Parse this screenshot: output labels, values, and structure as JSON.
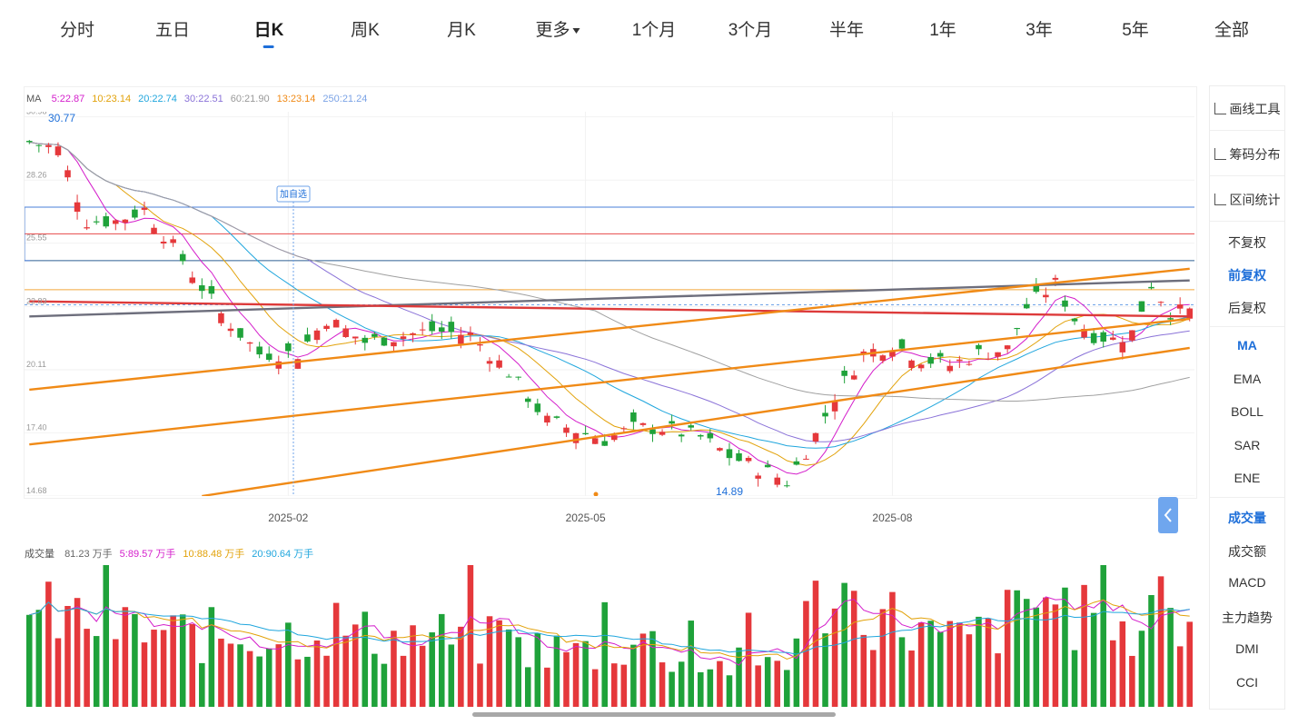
{
  "tabs": [
    {
      "label": "分时"
    },
    {
      "label": "五日"
    },
    {
      "label": "日K",
      "active": true
    },
    {
      "label": "周K"
    },
    {
      "label": "月K"
    },
    {
      "label": "更多"
    },
    {
      "label": "1个月"
    },
    {
      "label": "3个月"
    },
    {
      "label": "半年"
    },
    {
      "label": "1年"
    },
    {
      "label": "3年"
    },
    {
      "label": "5年"
    },
    {
      "label": "全部"
    }
  ],
  "ma_legend": {
    "title": "MA",
    "items": [
      {
        "label": "5:22.87",
        "color": "#d41ecb"
      },
      {
        "label": "10:23.14",
        "color": "#e2a20a"
      },
      {
        "label": "20:22.74",
        "color": "#20a6dd"
      },
      {
        "label": "30:22.51",
        "color": "#8a72d8"
      },
      {
        "label": "60:21.90",
        "color": "#999999"
      },
      {
        "label": "13:23.14",
        "color": "#f08a16"
      },
      {
        "label": "250:21.24",
        "color": "#7ba3e6"
      }
    ]
  },
  "vol_legend": {
    "title": "成交量",
    "items": [
      {
        "label": "81.23 万手",
        "color": "#666666"
      },
      {
        "label": "5:89.57 万手",
        "color": "#d41ecb"
      },
      {
        "label": "10:88.48 万手",
        "color": "#e2a20a"
      },
      {
        "label": "20:90.64 万手",
        "color": "#20a6dd"
      }
    ]
  },
  "annotations": {
    "high_label": "30.77",
    "low_label": "14.89",
    "add_watch": "加自选"
  },
  "chart_data": {
    "type": "candlestick",
    "title": "",
    "y_ticks": [
      "30.98",
      "28.26",
      "25.55",
      "22.83",
      "20.11",
      "17.40",
      "14.68"
    ],
    "ylim": [
      14.68,
      31.2
    ],
    "x_ticks": [
      {
        "label": "2025-02",
        "index": 27
      },
      {
        "label": "2025-05",
        "index": 58
      },
      {
        "label": "2025-08",
        "index": 90
      }
    ],
    "price_path": [
      [
        0,
        29.9
      ],
      [
        3,
        29.6
      ],
      [
        6,
        26.5
      ],
      [
        9,
        26.5
      ],
      [
        12,
        27.0
      ],
      [
        15,
        25.4
      ],
      [
        20,
        22.5
      ],
      [
        24,
        20.8
      ],
      [
        28,
        20.8
      ],
      [
        31,
        22.3
      ],
      [
        35,
        21.3
      ],
      [
        42,
        21.8
      ],
      [
        46,
        21.6
      ],
      [
        50,
        20.0
      ],
      [
        54,
        17.9
      ],
      [
        57,
        17.5
      ],
      [
        60,
        17.1
      ],
      [
        63,
        17.6
      ],
      [
        66,
        17.6
      ],
      [
        70,
        17.2
      ],
      [
        73,
        16.4
      ],
      [
        77,
        15.7
      ],
      [
        79,
        15.3
      ],
      [
        82,
        17.3
      ],
      [
        84,
        19.0
      ],
      [
        87,
        20.8
      ],
      [
        90,
        21.2
      ],
      [
        93,
        20.6
      ],
      [
        96,
        20.3
      ],
      [
        99,
        20.8
      ],
      [
        102,
        21.0
      ],
      [
        104,
        22.8
      ],
      [
        107,
        23.8
      ],
      [
        109,
        22.3
      ],
      [
        111,
        21.6
      ],
      [
        113,
        21.4
      ],
      [
        115,
        21.7
      ],
      [
        117,
        23.8
      ],
      [
        119,
        22.6
      ],
      [
        121,
        22.6
      ]
    ],
    "n_candles": 122,
    "vol_path": [
      [
        0,
        68
      ],
      [
        6,
        64
      ],
      [
        12,
        55
      ],
      [
        20,
        52
      ],
      [
        27,
        54
      ],
      [
        32,
        60
      ],
      [
        36,
        50
      ],
      [
        42,
        52
      ],
      [
        48,
        48
      ],
      [
        55,
        42
      ],
      [
        60,
        40
      ],
      [
        64,
        52
      ],
      [
        66,
        40
      ],
      [
        72,
        30
      ],
      [
        76,
        33
      ],
      [
        79,
        38
      ],
      [
        82,
        75
      ],
      [
        84,
        90
      ],
      [
        86,
        75
      ],
      [
        89,
        68
      ],
      [
        92,
        60
      ],
      [
        95,
        48
      ],
      [
        99,
        52
      ],
      [
        103,
        68
      ],
      [
        106,
        82
      ],
      [
        108,
        74
      ],
      [
        111,
        60
      ],
      [
        114,
        46
      ],
      [
        117,
        80
      ],
      [
        119,
        60
      ],
      [
        121,
        55
      ]
    ],
    "vol_max": 100,
    "horizontal_levels": [
      {
        "price": 27.1,
        "color": "#4a7fd8"
      },
      {
        "price": 25.95,
        "color": "#e74a4a"
      },
      {
        "price": 24.8,
        "color": "#2d5f93"
      },
      {
        "price": 23.55,
        "color": "#f3a63a"
      },
      {
        "price": 22.9,
        "color": "#6fa3e8",
        "dashed": true
      }
    ],
    "trendlines": [
      {
        "from": [
          0,
          22.4
        ],
        "to": [
          121,
          23.95
        ],
        "color": "#6d6e7c"
      },
      {
        "from": [
          0,
          23.05
        ],
        "to": [
          121,
          22.4
        ],
        "color": "#dd3a3a"
      },
      {
        "from": [
          0,
          19.25
        ],
        "to": [
          121,
          24.45
        ],
        "color": "#f08a16"
      },
      {
        "from": [
          0,
          16.9
        ],
        "to": [
          121,
          22.3
        ],
        "color": "#f08a16"
      },
      {
        "from": [
          18,
          14.68
        ],
        "to": [
          121,
          21.05
        ],
        "color": "#f08a16"
      }
    ]
  },
  "sidebar": {
    "tools": [
      {
        "label": "画线工具",
        "icon": "pen-icon"
      },
      {
        "label": "筹码分布",
        "icon": "chip-distribution-icon"
      },
      {
        "label": "区间统计",
        "icon": "range-stat-icon"
      }
    ],
    "adjust": [
      {
        "label": "不复权"
      },
      {
        "label": "前复权",
        "active": true
      },
      {
        "label": "后复权"
      }
    ],
    "indicators": [
      {
        "label": "MA",
        "active": true
      },
      {
        "label": "EMA"
      },
      {
        "label": "BOLL"
      },
      {
        "label": "SAR"
      },
      {
        "label": "ENE"
      }
    ],
    "sub_indicators": [
      {
        "label": "成交量",
        "active": true
      },
      {
        "label": "成交额"
      },
      {
        "label": "MACD"
      },
      {
        "label": "主力趋势"
      },
      {
        "label": "DMI"
      },
      {
        "label": "CCI"
      }
    ]
  },
  "colors": {
    "up": "#e5383b",
    "down": "#1fa23a",
    "accent": "#1e6fd9"
  }
}
